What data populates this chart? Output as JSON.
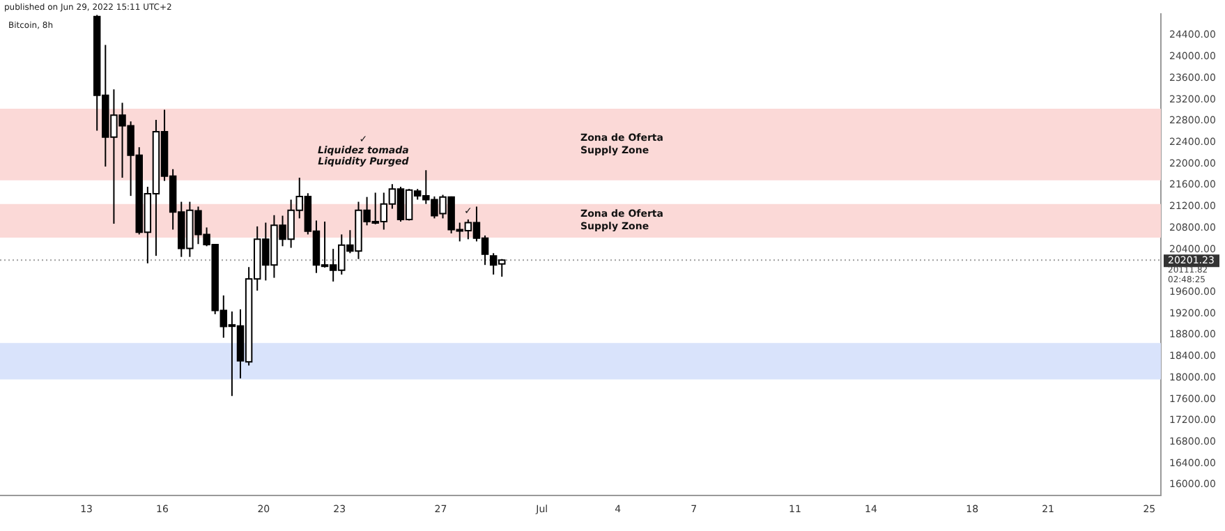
{
  "chart_data": {
    "type": "candlestick",
    "title": "Bitcoin, 8h",
    "subtitle": "published on Jun 29, 2022 15:11 UTC+2",
    "colors": [
      "#000000",
      "#000000",
      "#ffffff",
      "#000000",
      "#000000",
      "#000000",
      "#ffffff",
      "#ffffff",
      "#000000",
      "#000000",
      "#000000",
      "#ffffff",
      "#000000",
      "#000000",
      "#000000",
      "#000000",
      "#000000",
      "#000000",
      "#ffffff",
      "#ffffff",
      "#000000",
      "#ffffff",
      "#000000",
      "#ffffff",
      "#ffffff",
      "#000000",
      "#000000",
      "#000000",
      "#000000",
      "#ffffff",
      "#000000",
      "#ffffff",
      "#000000",
      "#000000",
      "#ffffff",
      "#ffffff",
      "#000000",
      "#ffffff",
      "#000000",
      "#000000",
      "#000000",
      "#ffffff",
      "#000000",
      "#000000",
      "#ffffff",
      "#000000",
      "#000000",
      "#000000",
      "#ffffff"
    ],
    "x": [
      "2022-06-13T10:00",
      "2022-06-13T18:00",
      "2022-06-14T02:00",
      "2022-06-14T10:00",
      "2022-06-14T18:00",
      "2022-06-15T02:00",
      "2022-06-15T10:00",
      "2022-06-15T18:00",
      "2022-06-16T02:00",
      "2022-06-16T10:00",
      "2022-06-16T18:00",
      "2022-06-17T02:00",
      "2022-06-17T10:00",
      "2022-06-17T18:00",
      "2022-06-18T02:00",
      "2022-06-18T10:00",
      "2022-06-18T18:00",
      "2022-06-19T02:00",
      "2022-06-19T10:00",
      "2022-06-19T18:00",
      "2022-06-20T02:00",
      "2022-06-20T10:00",
      "2022-06-20T18:00",
      "2022-06-21T02:00",
      "2022-06-21T10:00",
      "2022-06-21T18:00",
      "2022-06-22T02:00",
      "2022-06-22T10:00",
      "2022-06-22T18:00",
      "2022-06-23T02:00",
      "2022-06-23T10:00",
      "2022-06-23T18:00",
      "2022-06-24T02:00",
      "2022-06-24T10:00",
      "2022-06-24T18:00",
      "2022-06-25T02:00",
      "2022-06-25T10:00",
      "2022-06-25T18:00",
      "2022-06-26T02:00",
      "2022-06-26T10:00",
      "2022-06-26T18:00",
      "2022-06-27T02:00",
      "2022-06-27T10:00",
      "2022-06-27T18:00",
      "2022-06-28T02:00",
      "2022-06-28T10:00",
      "2022-06-28T18:00",
      "2022-06-29T02:00",
      "2022-06-29T10:00"
    ],
    "ohlc": [
      [
        24750,
        24780,
        22620,
        23280
      ],
      [
        23280,
        24220,
        21950,
        22500
      ],
      [
        22500,
        23390,
        20880,
        22910
      ],
      [
        22910,
        23140,
        21740,
        22710
      ],
      [
        22710,
        22790,
        21400,
        22160
      ],
      [
        22160,
        22310,
        20680,
        20720
      ],
      [
        20720,
        21570,
        20140,
        21440
      ],
      [
        21440,
        22820,
        20280,
        22600
      ],
      [
        22600,
        23010,
        21680,
        21770
      ],
      [
        21770,
        21900,
        20770,
        21100
      ],
      [
        21100,
        21290,
        20260,
        20420
      ],
      [
        20420,
        21290,
        20260,
        21130
      ],
      [
        21120,
        21200,
        20500,
        20680
      ],
      [
        20680,
        20810,
        20460,
        20490
      ],
      [
        20490,
        20500,
        19190,
        19260
      ],
      [
        19260,
        19540,
        18750,
        18960
      ],
      [
        18990,
        19240,
        17660,
        18970
      ],
      [
        18970,
        19280,
        17990,
        18320
      ],
      [
        18300,
        20070,
        18230,
        19850
      ],
      [
        19850,
        20830,
        19630,
        20590
      ],
      [
        20590,
        20900,
        19820,
        20110
      ],
      [
        20110,
        21040,
        19870,
        20850
      ],
      [
        20850,
        21030,
        20460,
        20590
      ],
      [
        20590,
        21330,
        20430,
        21130
      ],
      [
        21130,
        21740,
        20980,
        21390
      ],
      [
        21390,
        21450,
        20680,
        20740
      ],
      [
        20740,
        20940,
        19960,
        20110
      ],
      [
        20110,
        20920,
        20060,
        20100
      ],
      [
        20110,
        20410,
        19800,
        20010
      ],
      [
        20010,
        20680,
        19930,
        20480
      ],
      [
        20480,
        20760,
        20330,
        20370
      ],
      [
        20370,
        21290,
        20220,
        21130
      ],
      [
        21130,
        21380,
        20850,
        20920
      ],
      [
        20920,
        21460,
        20870,
        20910
      ],
      [
        20920,
        21460,
        20770,
        21250
      ],
      [
        21250,
        21620,
        21160,
        21530
      ],
      [
        21530,
        21570,
        20920,
        20960
      ],
      [
        20960,
        21530,
        20940,
        21510
      ],
      [
        21490,
        21530,
        21330,
        21400
      ],
      [
        21400,
        21880,
        21250,
        21330
      ],
      [
        21330,
        21390,
        20980,
        21030
      ],
      [
        21070,
        21420,
        20980,
        21380
      ],
      [
        21380,
        21390,
        20700,
        20770
      ],
      [
        20770,
        20900,
        20550,
        20760
      ],
      [
        20750,
        20960,
        20590,
        20900
      ],
      [
        20900,
        21200,
        20550,
        20610
      ],
      [
        20610,
        20660,
        20110,
        20310
      ],
      [
        20280,
        20330,
        19930,
        20110
      ],
      [
        20130,
        20220,
        19890,
        20201.23
      ]
    ],
    "xlim": [
      "2022-06-09T14:00",
      "2022-07-25T11:00"
    ],
    "xticks": [
      {
        "value": "2022-06-13",
        "label": "13"
      },
      {
        "value": "2022-06-16",
        "label": "16"
      },
      {
        "value": "2022-06-20",
        "label": "20"
      },
      {
        "value": "2022-06-23",
        "label": "23"
      },
      {
        "value": "2022-06-27",
        "label": "27"
      },
      {
        "value": "2022-07-01",
        "label": "Jul"
      },
      {
        "value": "2022-07-04",
        "label": "4"
      },
      {
        "value": "2022-07-07",
        "label": "7"
      },
      {
        "value": "2022-07-11",
        "label": "11"
      },
      {
        "value": "2022-07-14",
        "label": "14"
      },
      {
        "value": "2022-07-18",
        "label": "18"
      },
      {
        "value": "2022-07-21",
        "label": "21"
      },
      {
        "value": "2022-07-25",
        "label": "25"
      }
    ],
    "ylim": [
      15800,
      24800
    ],
    "yticks": [
      {
        "value": 16000,
        "label": "16000.00"
      },
      {
        "value": 16400,
        "label": "16400.00"
      },
      {
        "value": 16800,
        "label": "16800.00"
      },
      {
        "value": 17200,
        "label": "17200.00"
      },
      {
        "value": 17600,
        "label": "17600.00"
      },
      {
        "value": 18000,
        "label": "18000.00"
      },
      {
        "value": 18400,
        "label": "18400.00"
      },
      {
        "value": 18800,
        "label": "18800.00"
      },
      {
        "value": 19200,
        "label": "19200.00"
      },
      {
        "value": 19600,
        "label": "19600.00"
      },
      {
        "value": 20400,
        "label": "20400.00"
      },
      {
        "value": 20800,
        "label": "20800.00"
      },
      {
        "value": 21200,
        "label": "21200.00"
      },
      {
        "value": 21600,
        "label": "21600.00"
      },
      {
        "value": 22000,
        "label": "22000.00"
      },
      {
        "value": 22400,
        "label": "22400.00"
      },
      {
        "value": 22800,
        "label": "22800.00"
      },
      {
        "value": 23200,
        "label": "23200.00"
      },
      {
        "value": 23600,
        "label": "23600.00"
      },
      {
        "value": 24000,
        "label": "24000.00"
      },
      {
        "value": 24400,
        "label": "24400.00"
      }
    ],
    "bands": [
      {
        "axis": "y",
        "from": 21690,
        "to": 23030,
        "label": "Zona de Oferta\nSupply Zone",
        "color": "#fbd9d7"
      },
      {
        "axis": "y",
        "from": 20620,
        "to": 21250,
        "label": "Zona de Oferta\nSupply Zone",
        "color": "#fbd9d7"
      },
      {
        "axis": "y",
        "from": 17970,
        "to": 18650,
        "color": "#d9e3fb"
      }
    ],
    "ref_lines": [
      {
        "axis": "y",
        "value": 20201.23,
        "label": "20201.23\n20111.82\n02:48:25",
        "color": "#9e9e9e",
        "line_style": "dotted"
      }
    ],
    "annotations": [
      {
        "text": "✓\nLiquidez tomada\nLiquidity Purged",
        "x": "2022-06-26T10:00",
        "y": 21880
      },
      {
        "text": "✓",
        "x": "2022-06-28T02:00",
        "y": 20960
      }
    ]
  }
}
